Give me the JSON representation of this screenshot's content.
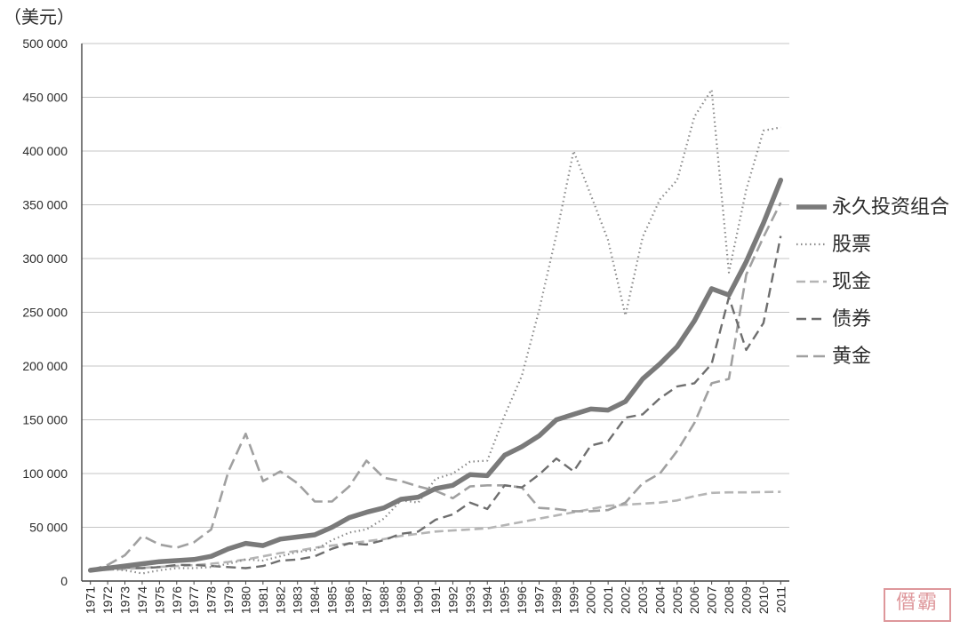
{
  "unit_label": "（美元）",
  "chart_data": {
    "type": "line",
    "x": [
      1971,
      1972,
      1973,
      1974,
      1975,
      1976,
      1977,
      1978,
      1979,
      1980,
      1981,
      1982,
      1983,
      1984,
      1985,
      1986,
      1987,
      1988,
      1989,
      1990,
      1991,
      1992,
      1993,
      1994,
      1995,
      1996,
      1997,
      1998,
      1999,
      2000,
      2001,
      2002,
      2003,
      2004,
      2005,
      2006,
      2007,
      2008,
      2009,
      2010,
      2011
    ],
    "x_tick_labels": [
      "1971",
      "1972",
      "1973",
      "1974",
      "1975",
      "1976",
      "1977",
      "1978",
      "1979",
      "1980",
      "1981",
      "1982",
      "1983",
      "1984",
      "1985",
      "1986",
      "1987",
      "1988",
      "1989",
      "1990",
      "1991",
      "1992",
      "1993",
      "1994",
      "1995",
      "1996",
      "1997",
      "1998",
      "1999",
      "2000",
      "2001",
      "2002",
      "2003",
      "2004",
      "2005",
      "2006",
      "2007",
      "2008",
      "2009",
      "2010",
      "2011"
    ],
    "ylim": [
      0,
      500000
    ],
    "y_ticks": [
      0,
      50000,
      100000,
      150000,
      200000,
      250000,
      300000,
      350000,
      400000,
      450000,
      500000
    ],
    "y_tick_labels": [
      "0",
      "50 000",
      "100 000",
      "150 000",
      "200 000",
      "250 000",
      "300 000",
      "350 000",
      "400 000",
      "450 000",
      "500 000"
    ],
    "grid": "horizontal",
    "legend_position": "right",
    "series": [
      {
        "name": "永久投资组合",
        "color": "#7a7a7a",
        "style": "solid-thick",
        "values": [
          10000,
          12000,
          14000,
          16000,
          18000,
          19000,
          20000,
          23000,
          30000,
          35000,
          33000,
          39000,
          41000,
          43000,
          50000,
          59000,
          64000,
          68000,
          76000,
          78000,
          86000,
          89000,
          99000,
          98000,
          117000,
          125000,
          135000,
          150000,
          155000,
          160000,
          159000,
          167000,
          188000,
          202000,
          218000,
          242000,
          272000,
          266000,
          297000,
          333000,
          373000
        ]
      },
      {
        "name": "股票",
        "color": "#8a8a8a",
        "style": "dotted",
        "values": [
          10000,
          11000,
          10000,
          7000,
          10000,
          12000,
          12000,
          13000,
          16000,
          20000,
          19000,
          23000,
          27000,
          29000,
          38000,
          45000,
          48000,
          58000,
          75000,
          73000,
          95000,
          100000,
          111000,
          112000,
          154000,
          191000,
          252000,
          322000,
          400000,
          359000,
          317000,
          247000,
          320000,
          355000,
          373000,
          432000,
          457000,
          287000,
          364000,
          419000,
          422000
        ]
      },
      {
        "name": "现金",
        "color": "#b5b5b5",
        "style": "dashed-light",
        "values": [
          10000,
          10500,
          11200,
          12200,
          13200,
          14000,
          14800,
          16000,
          17800,
          20000,
          23000,
          26000,
          28000,
          31000,
          33000,
          35000,
          37000,
          39000,
          42000,
          44000,
          46000,
          47000,
          48000,
          49000,
          52000,
          55000,
          58000,
          61000,
          64000,
          67000,
          70000,
          71000,
          72000,
          73000,
          75000,
          79000,
          82000,
          82500,
          82500,
          82700,
          83000
        ]
      },
      {
        "name": "债券",
        "color": "#6e6e6e",
        "style": "dashed",
        "values": [
          10000,
          11500,
          12500,
          12000,
          13000,
          15000,
          15000,
          14000,
          13000,
          12000,
          14000,
          19000,
          20000,
          23000,
          30000,
          35000,
          34000,
          38000,
          44000,
          46000,
          57000,
          62000,
          73000,
          67000,
          89000,
          87000,
          99000,
          114000,
          102000,
          126000,
          130000,
          152000,
          155000,
          170000,
          181000,
          184000,
          202000,
          264000,
          215000,
          240000,
          321000
        ]
      },
      {
        "name": "黄金",
        "color": "#a0a0a0",
        "style": "dashed-long",
        "values": [
          10000,
          15000,
          24000,
          42000,
          34000,
          31000,
          36000,
          48000,
          102000,
          137000,
          93000,
          102000,
          91000,
          74000,
          74000,
          88000,
          112000,
          96000,
          93000,
          88000,
          84000,
          77000,
          88000,
          89000,
          89000,
          87000,
          68000,
          67000,
          65000,
          65000,
          66000,
          73000,
          91000,
          100000,
          121000,
          147000,
          184000,
          188000,
          285000,
          320000,
          352000
        ]
      }
    ]
  },
  "watermark": "僭霸"
}
